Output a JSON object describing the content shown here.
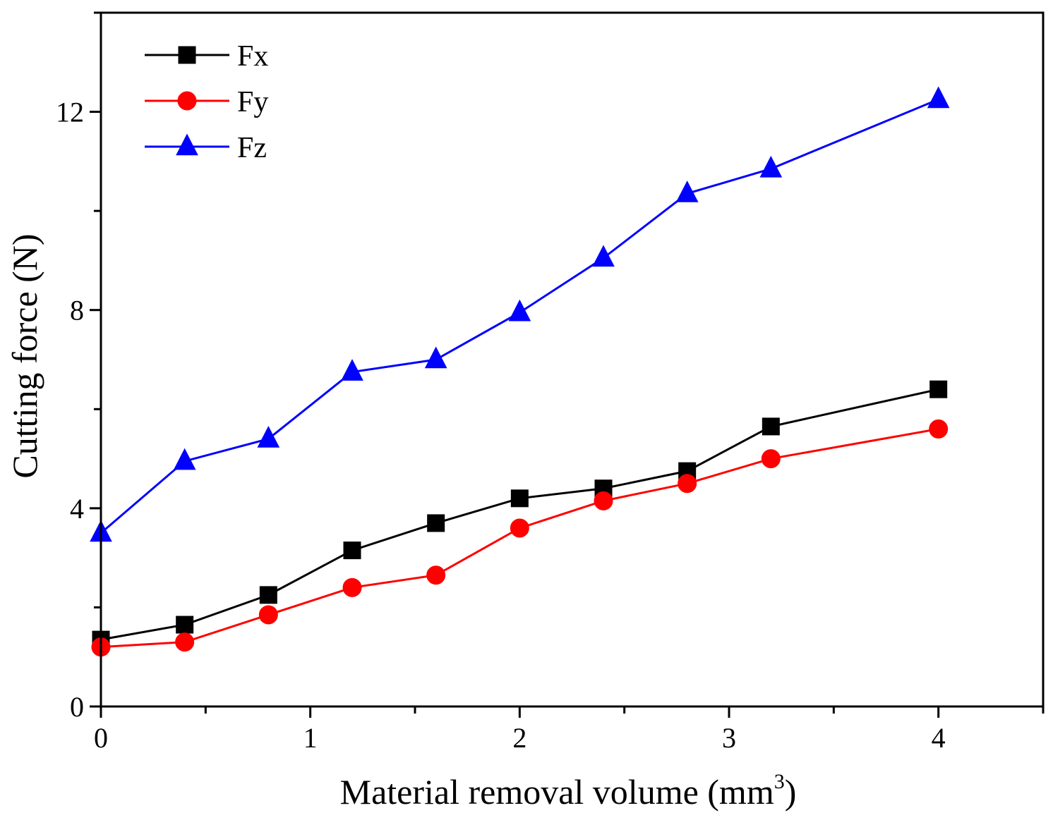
{
  "chart_data": {
    "type": "line",
    "title": "",
    "xlabel": "Material removal volume (mm",
    "xlabel_sup": "3",
    "xlabel_close": ")",
    "ylabel": "Cutting force (N)",
    "xlim": [
      0,
      4.5
    ],
    "ylim": [
      0,
      14
    ],
    "xticks": [
      0,
      1,
      2,
      3,
      4
    ],
    "xtick_labels": [
      "0",
      "1",
      "2",
      "3",
      "4"
    ],
    "yticks": [
      0,
      4,
      8,
      12
    ],
    "ytick_labels": [
      "0",
      "4",
      "8",
      "12"
    ],
    "grid": false,
    "legend_position": "top-left",
    "x": [
      0,
      0.4,
      0.8,
      1.2,
      1.6,
      2.0,
      2.4,
      2.8,
      3.2,
      4.0
    ],
    "series": [
      {
        "name": "Fx",
        "color": "#000000",
        "marker": "square",
        "values": [
          1.35,
          1.65,
          2.25,
          3.15,
          3.7,
          4.2,
          4.4,
          4.75,
          5.65,
          6.4
        ]
      },
      {
        "name": "Fy",
        "color": "#ff0000",
        "marker": "circle",
        "values": [
          1.2,
          1.3,
          1.85,
          2.4,
          2.65,
          3.6,
          4.15,
          4.5,
          5.0,
          5.6
        ]
      },
      {
        "name": "Fz",
        "color": "#0000ff",
        "marker": "triangle",
        "values": [
          3.5,
          4.95,
          5.4,
          6.75,
          7.0,
          7.95,
          9.05,
          10.35,
          10.85,
          12.25
        ]
      }
    ]
  }
}
